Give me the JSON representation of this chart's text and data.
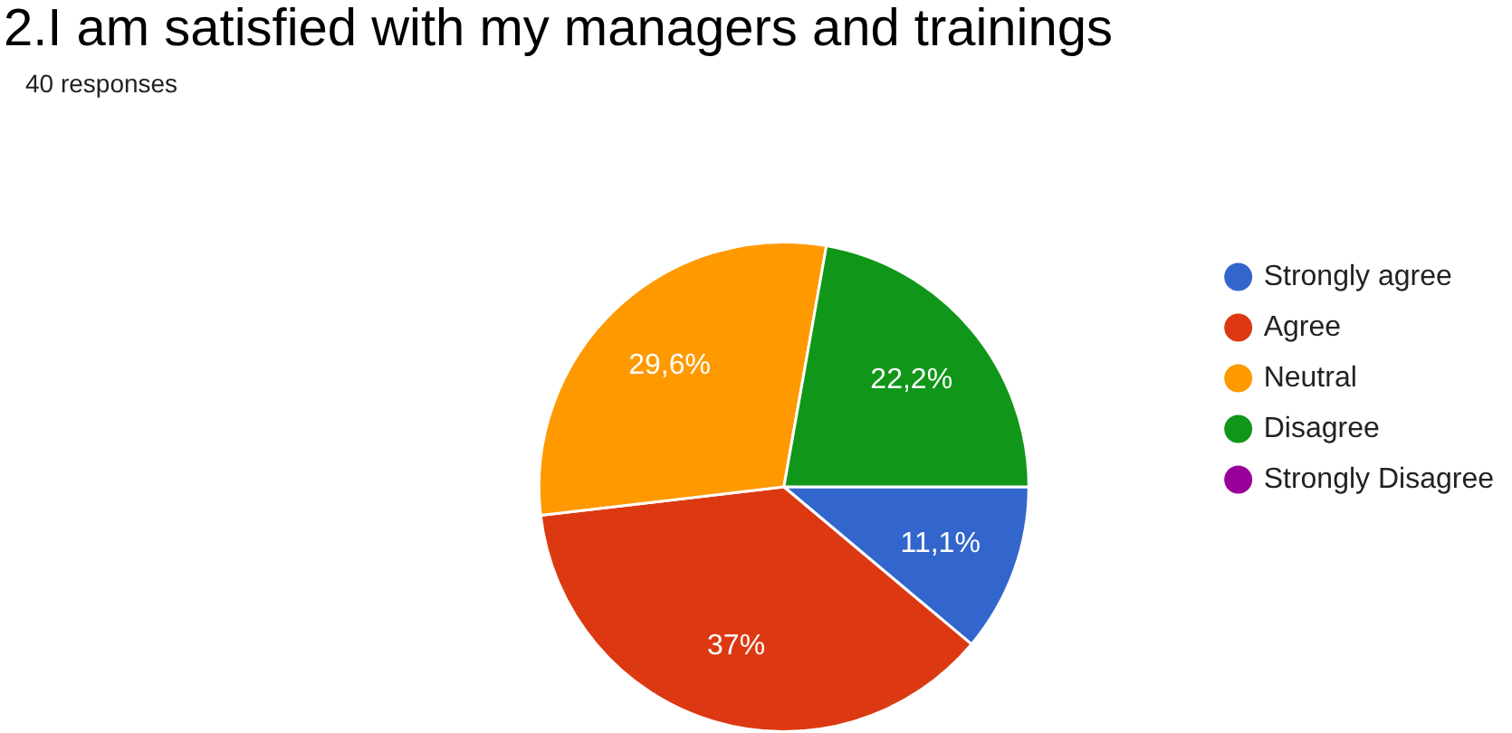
{
  "chart_data": {
    "type": "pie",
    "title": "2.I am satisfied with my managers and trainings",
    "subtitle": "40 responses",
    "categories": [
      "Strongly agree",
      "Agree",
      "Neutral",
      "Disagree",
      "Strongly Disagree"
    ],
    "values": [
      11.1,
      37,
      29.6,
      22.2,
      0
    ],
    "colors": [
      "#3366cc",
      "#dc3912",
      "#ff9900",
      "#109618",
      "#990099"
    ],
    "value_labels": [
      "11,1%",
      "37%",
      "29,6%",
      "22,2%",
      null
    ],
    "legend": "right"
  }
}
